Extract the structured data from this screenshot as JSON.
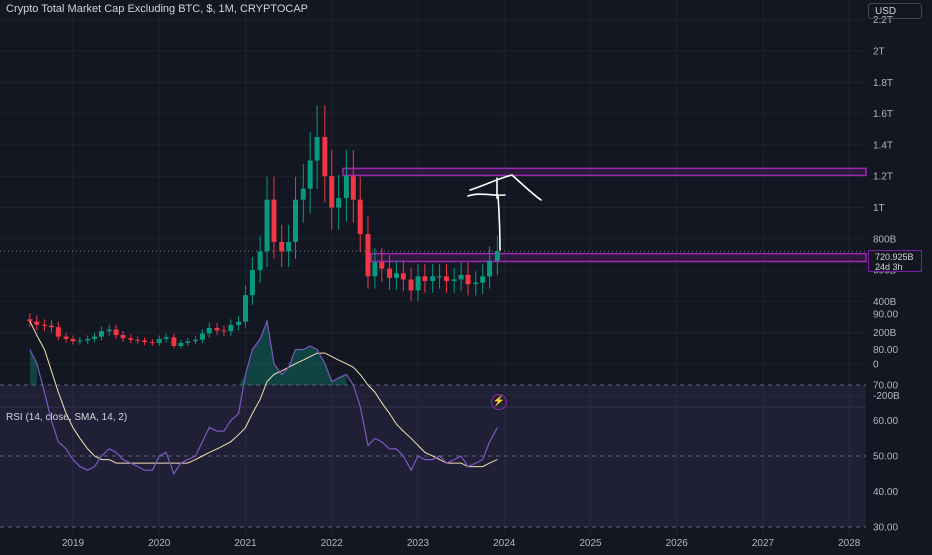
{
  "header": {
    "title": "Crypto Total Market Cap Excluding BTC, $, 1M, CRYPTOCAP",
    "currency_button": "USD"
  },
  "price_tag": {
    "value": "720.925B",
    "countdown": "24d 3h"
  },
  "colors": {
    "up": "#089981",
    "down": "#f23645",
    "zone": "#9c27b0",
    "rsi_line": "#7e57c2",
    "rsi_ma": "#f5e0b0"
  },
  "chart_data": [
    {
      "type": "candlestick",
      "title": "Crypto Total Market Cap Excluding BTC, $, 1M, CRYPTOCAP",
      "y_unit": "USD",
      "y_ticks": [
        "-200B",
        "0",
        "200B",
        "400B",
        "600B",
        "800B",
        "1T",
        "1.2T",
        "1.4T",
        "1.6T",
        "1.8T",
        "2T",
        "2.2T"
      ],
      "ylim": [
        -200,
        2250
      ],
      "x_ticks": [
        "2019",
        "2020",
        "2021",
        "2022",
        "2023",
        "2024",
        "2025",
        "2026",
        "2027",
        "2028"
      ],
      "annotations": [
        {
          "type": "zone",
          "from": 1250,
          "to": 1205
        },
        {
          "type": "zone",
          "from": 705,
          "to": 655
        },
        {
          "type": "arrow-up",
          "note": "hand-drawn arrow"
        }
      ],
      "monthly_closes_billions": [
        [
          2018.5,
          272
        ],
        [
          2018.58,
          250
        ],
        [
          2018.67,
          245
        ],
        [
          2018.75,
          235
        ],
        [
          2018.83,
          175
        ],
        [
          2018.92,
          160
        ],
        [
          2019.0,
          145
        ],
        [
          2019.08,
          150
        ],
        [
          2019.17,
          160
        ],
        [
          2019.25,
          175
        ],
        [
          2019.33,
          210
        ],
        [
          2019.42,
          220
        ],
        [
          2019.5,
          185
        ],
        [
          2019.58,
          165
        ],
        [
          2019.67,
          155
        ],
        [
          2019.75,
          150
        ],
        [
          2019.83,
          140
        ],
        [
          2019.92,
          135
        ],
        [
          2020.0,
          160
        ],
        [
          2020.08,
          170
        ],
        [
          2020.17,
          115
        ],
        [
          2020.25,
          135
        ],
        [
          2020.33,
          145
        ],
        [
          2020.42,
          155
        ],
        [
          2020.5,
          195
        ],
        [
          2020.58,
          230
        ],
        [
          2020.67,
          215
        ],
        [
          2020.75,
          210
        ],
        [
          2020.83,
          250
        ],
        [
          2020.92,
          270
        ],
        [
          2021.0,
          440
        ],
        [
          2021.08,
          600
        ],
        [
          2021.17,
          720
        ],
        [
          2021.25,
          1050
        ],
        [
          2021.33,
          780
        ],
        [
          2021.42,
          720
        ],
        [
          2021.5,
          780
        ],
        [
          2021.58,
          1050
        ],
        [
          2021.67,
          1120
        ],
        [
          2021.75,
          1300
        ],
        [
          2021.83,
          1450
        ],
        [
          2021.92,
          1200
        ],
        [
          2022.0,
          1000
        ],
        [
          2022.08,
          1060
        ],
        [
          2022.17,
          1200
        ],
        [
          2022.25,
          1050
        ],
        [
          2022.33,
          830
        ],
        [
          2022.42,
          560
        ],
        [
          2022.5,
          650
        ],
        [
          2022.58,
          610
        ],
        [
          2022.67,
          550
        ],
        [
          2022.75,
          580
        ],
        [
          2022.83,
          540
        ],
        [
          2022.92,
          470
        ],
        [
          2023.0,
          560
        ],
        [
          2023.08,
          530
        ],
        [
          2023.17,
          560
        ],
        [
          2023.25,
          560
        ],
        [
          2023.33,
          530
        ],
        [
          2023.42,
          540
        ],
        [
          2023.5,
          570
        ],
        [
          2023.58,
          510
        ],
        [
          2023.67,
          520
        ],
        [
          2023.75,
          560
        ],
        [
          2023.83,
          660
        ],
        [
          2023.92,
          721
        ]
      ]
    },
    {
      "type": "line",
      "title": "RSI (14, close, SMA, 14, 2)",
      "y_ticks": [
        "30.00",
        "40.00",
        "50.00",
        "60.00",
        "70.00",
        "80.00",
        "90.00"
      ],
      "ylim": [
        28,
        95
      ],
      "bands": [
        30,
        50,
        70
      ],
      "series": [
        {
          "values": [
            80,
            76,
            68,
            60,
            54,
            52,
            49,
            47,
            46,
            47,
            50,
            52,
            51,
            49,
            48,
            47,
            46,
            46,
            50,
            51,
            45,
            48,
            49,
            50,
            54,
            58,
            57,
            57,
            60,
            62,
            73,
            80,
            83,
            88,
            76,
            73,
            75,
            80,
            80,
            81,
            80,
            76,
            71,
            72,
            73,
            70,
            64,
            53,
            55,
            54,
            52,
            52,
            50,
            46,
            50,
            49,
            49,
            50,
            48,
            49,
            50,
            47,
            48,
            49,
            54,
            58
          ]
        },
        {
          "values": [
            88,
            84,
            80,
            74,
            68,
            62,
            58,
            55,
            52,
            50,
            49,
            49,
            48,
            48,
            48,
            48,
            48,
            48,
            48,
            48,
            48,
            48,
            48,
            49,
            50,
            51,
            52,
            53,
            54,
            56,
            58,
            62,
            66,
            71,
            73,
            74,
            75,
            76,
            77,
            78,
            79,
            79,
            78,
            77,
            76,
            75,
            73,
            70,
            68,
            65,
            62,
            59,
            57,
            55,
            53,
            51,
            50,
            49,
            48,
            48,
            48,
            47,
            47,
            47,
            48,
            49
          ]
        }
      ]
    }
  ]
}
